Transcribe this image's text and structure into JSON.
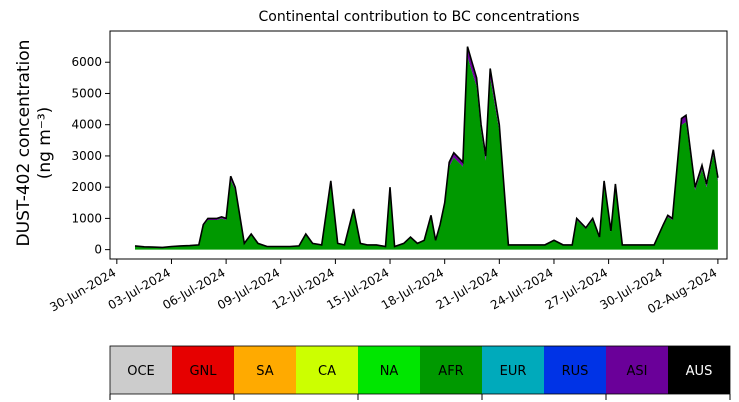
{
  "chart_data": {
    "type": "area",
    "title": "Continental contribution to BC concentrations",
    "ylabel_line1": "DUST-402 concentration",
    "ylabel_line2": "(ng m⁻³)",
    "ylim": [
      -300,
      7000
    ],
    "yticks": [
      0,
      1000,
      2000,
      3000,
      4000,
      5000,
      6000
    ],
    "xlim": [
      "2024-06-29T15:00",
      "2024-08-02T12:00"
    ],
    "xticks": [
      "2024-06-30",
      "2024-07-03",
      "2024-07-06",
      "2024-07-09",
      "2024-07-12",
      "2024-07-15",
      "2024-07-18",
      "2024-07-21",
      "2024-07-24",
      "2024-07-27",
      "2024-07-30",
      "2024-08-02"
    ],
    "xtick_labels": [
      "30-Jun-2024",
      "03-Jul-2024",
      "06-Jul-2024",
      "09-Jul-2024",
      "12-Jul-2024",
      "15-Jul-2024",
      "18-Jul-2024",
      "21-Jul-2024",
      "24-Jul-2024",
      "27-Jul-2024",
      "30-Jul-2024",
      "02-Aug-2024"
    ],
    "total_outline_color": "#000000",
    "series": [
      {
        "name": "AFR",
        "color": "#009900",
        "share": 0.95
      },
      {
        "name": "ASI",
        "color": "#6a0099",
        "share": 0.05
      }
    ],
    "x": [
      "2024-07-01T00:00",
      "2024-07-01T12:00",
      "2024-07-02T00:00",
      "2024-07-02T12:00",
      "2024-07-03T00:00",
      "2024-07-03T12:00",
      "2024-07-04T00:00",
      "2024-07-04T12:00",
      "2024-07-04T18:00",
      "2024-07-05T00:00",
      "2024-07-05T12:00",
      "2024-07-05T18:00",
      "2024-07-06T00:00",
      "2024-07-06T06:00",
      "2024-07-06T12:00",
      "2024-07-07T00:00",
      "2024-07-07T09:00",
      "2024-07-07T18:00",
      "2024-07-08T06:00",
      "2024-07-09T00:00",
      "2024-07-09T12:00",
      "2024-07-10T00:00",
      "2024-07-10T09:00",
      "2024-07-10T18:00",
      "2024-07-11T06:00",
      "2024-07-11T18:00",
      "2024-07-12T03:00",
      "2024-07-12T12:00",
      "2024-07-13T00:00",
      "2024-07-13T09:00",
      "2024-07-13T18:00",
      "2024-07-14T06:00",
      "2024-07-14T18:00",
      "2024-07-15T00:00",
      "2024-07-15T06:00",
      "2024-07-15T18:00",
      "2024-07-16T03:00",
      "2024-07-16T12:00",
      "2024-07-16T21:00",
      "2024-07-17T06:00",
      "2024-07-17T12:00",
      "2024-07-17T18:00",
      "2024-07-18T00:00",
      "2024-07-18T06:00",
      "2024-07-18T12:00",
      "2024-07-19T00:00",
      "2024-07-19T06:00",
      "2024-07-19T12:00",
      "2024-07-19T18:00",
      "2024-07-20T00:00",
      "2024-07-20T06:00",
      "2024-07-20T12:00",
      "2024-07-21T00:00",
      "2024-07-21T12:00",
      "2024-07-22T00:00",
      "2024-07-22T12:00",
      "2024-07-23T00:00",
      "2024-07-23T12:00",
      "2024-07-24T00:00",
      "2024-07-24T12:00",
      "2024-07-25T00:00",
      "2024-07-25T06:00",
      "2024-07-25T18:00",
      "2024-07-26T03:00",
      "2024-07-26T12:00",
      "2024-07-26T18:00",
      "2024-07-27T03:00",
      "2024-07-27T09:00",
      "2024-07-27T18:00",
      "2024-07-28T06:00",
      "2024-07-28T18:00",
      "2024-07-29T06:00",
      "2024-07-29T12:00",
      "2024-07-30T00:00",
      "2024-07-30T06:00",
      "2024-07-30T12:00",
      "2024-07-31T00:00",
      "2024-07-31T06:00",
      "2024-07-31T18:00",
      "2024-08-01T03:00",
      "2024-08-01T09:00",
      "2024-08-01T18:00",
      "2024-08-02T00:00"
    ],
    "total": [
      120,
      90,
      80,
      70,
      100,
      120,
      130,
      150,
      800,
      1000,
      1000,
      1050,
      1000,
      2350,
      2000,
      200,
      500,
      200,
      100,
      100,
      100,
      120,
      500,
      200,
      150,
      2200,
      200,
      150,
      1300,
      200,
      150,
      150,
      100,
      2000,
      100,
      200,
      400,
      200,
      300,
      1100,
      300,
      800,
      1500,
      2800,
      3100,
      2800,
      6500,
      6000,
      5500,
      4000,
      3000,
      5800,
      4000,
      150,
      150,
      150,
      150,
      150,
      300,
      150,
      150,
      1000,
      700,
      1000,
      400,
      2200,
      600,
      2100,
      150,
      150,
      150,
      150,
      150,
      800,
      1100,
      1000,
      4200,
      4300,
      2000,
      2700,
      2100,
      3200,
      2300
    ]
  },
  "legend": {
    "entries": [
      {
        "label": "OCE",
        "color": "#cccccc",
        "text_color": "#000000"
      },
      {
        "label": "GNL",
        "color": "#e60000",
        "text_color": "#000000"
      },
      {
        "label": "SA",
        "color": "#ffaa00",
        "text_color": "#000000"
      },
      {
        "label": "CA",
        "color": "#ccff00",
        "text_color": "#000000"
      },
      {
        "label": "NA",
        "color": "#00e600",
        "text_color": "#000000"
      },
      {
        "label": "AFR",
        "color": "#009900",
        "text_color": "#000000"
      },
      {
        "label": "EUR",
        "color": "#00aabb",
        "text_color": "#000000"
      },
      {
        "label": "RUS",
        "color": "#0033e6",
        "text_color": "#000000"
      },
      {
        "label": "ASI",
        "color": "#6a0099",
        "text_color": "#000000"
      },
      {
        "label": "AUS",
        "color": "#000000",
        "text_color": "#ffffff"
      }
    ]
  }
}
